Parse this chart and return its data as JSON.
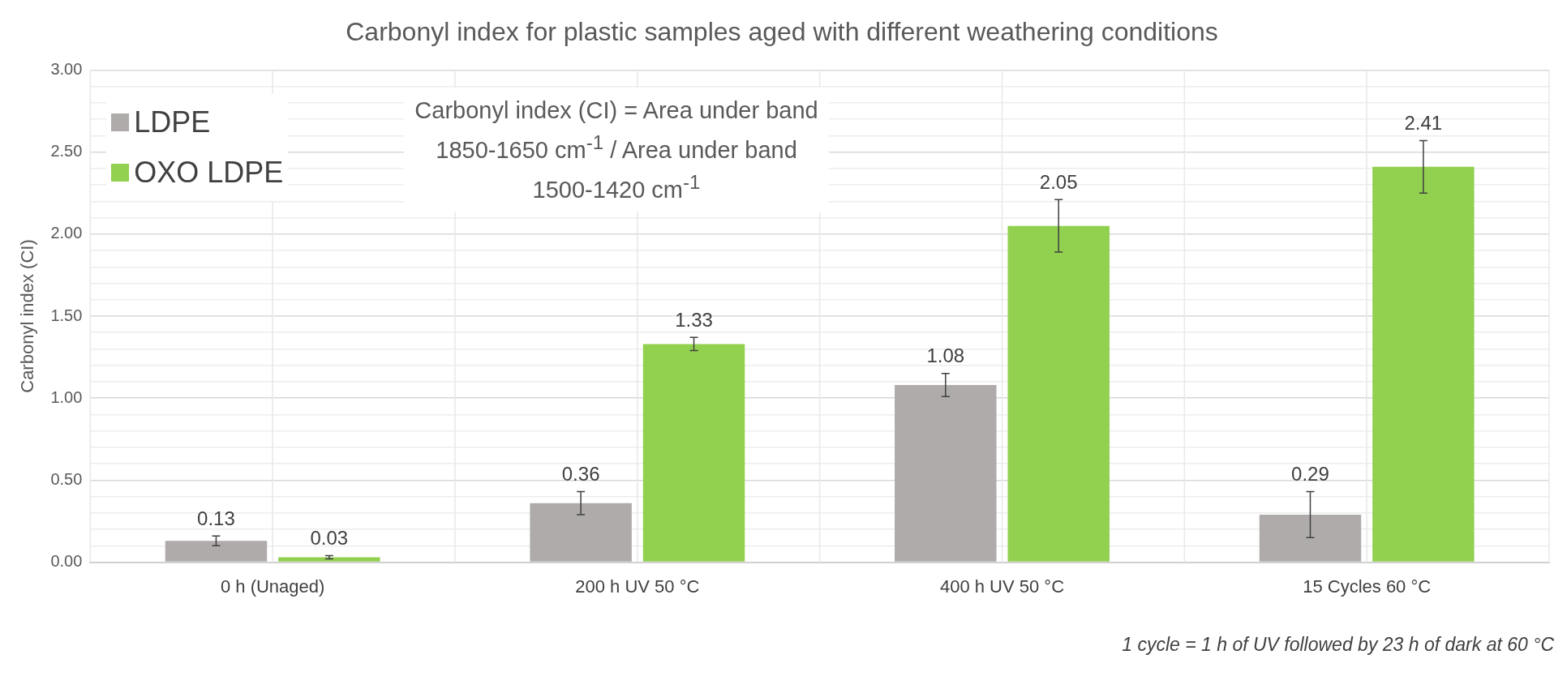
{
  "chart_data": {
    "type": "bar",
    "title": "Carbonyl index for plastic samples aged with different weathering conditions",
    "ylabel": "Carbonyl index (CI)",
    "categories": [
      "0 h (Unaged)",
      "200 h UV 50 °C",
      "400 h UV 50 °C",
      "15 Cycles 60 °C"
    ],
    "series": [
      {
        "name": "LDPE",
        "color": "#afabab",
        "values": [
          0.13,
          0.36,
          1.08,
          0.29
        ],
        "errors": [
          0.03,
          0.07,
          0.07,
          0.14
        ]
      },
      {
        "name": "OXO LDPE",
        "color": "#92d050",
        "values": [
          0.03,
          1.33,
          2.05,
          2.41
        ],
        "errors": [
          0.01,
          0.04,
          0.16,
          0.16
        ]
      }
    ],
    "ylim": [
      0,
      3
    ],
    "yticks": [
      {
        "value": 0,
        "label": "0.00"
      },
      {
        "value": 0.1,
        "label": null
      },
      {
        "value": 0.2,
        "label": null
      },
      {
        "value": 0.3,
        "label": null
      },
      {
        "value": 0.4,
        "label": null
      },
      {
        "value": 0.5,
        "label": "0.50"
      },
      {
        "value": 0.6,
        "label": null
      },
      {
        "value": 0.7,
        "label": null
      },
      {
        "value": 0.8,
        "label": null
      },
      {
        "value": 0.9,
        "label": null
      },
      {
        "value": 1,
        "label": "1.00"
      },
      {
        "value": 1.1,
        "label": null
      },
      {
        "value": 1.2,
        "label": null
      },
      {
        "value": 1.3,
        "label": null
      },
      {
        "value": 1.4,
        "label": null
      },
      {
        "value": 1.5,
        "label": "1.50"
      },
      {
        "value": 1.6,
        "label": null
      },
      {
        "value": 1.7,
        "label": null
      },
      {
        "value": 1.8,
        "label": null
      },
      {
        "value": 1.9,
        "label": null
      },
      {
        "value": 2,
        "label": "2.00"
      },
      {
        "value": 2.1,
        "label": null
      },
      {
        "value": 2.2,
        "label": null
      },
      {
        "value": 2.3,
        "label": null
      },
      {
        "value": 2.4,
        "label": null
      },
      {
        "value": 2.5,
        "label": "2.50"
      },
      {
        "value": 2.6,
        "label": null
      },
      {
        "value": 2.7,
        "label": null
      },
      {
        "value": 2.8,
        "label": null
      },
      {
        "value": 2.9,
        "label": null
      },
      {
        "value": 3,
        "label": "3.00"
      }
    ],
    "grid": true,
    "legend": "top left",
    "data_labels": true,
    "annotations": [
      "Carbonyl index (CI) = Area under band 1850-1650 cm$^{-1}$ / Area under band 1500-1420 cm$^{-1}$",
      "1 cycle = 1 h of UV followed by 23 h of dark at 60 °C"
    ]
  }
}
